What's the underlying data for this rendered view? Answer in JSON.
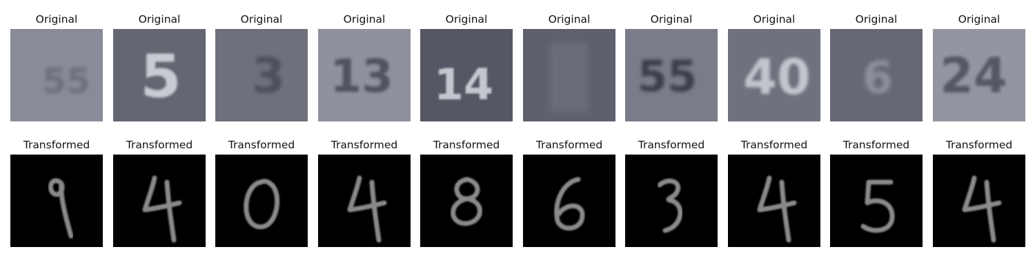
{
  "labels": {
    "original": "Original",
    "transformed": "Transformed"
  },
  "original_row": [
    {
      "glyph": "55",
      "bg": "#898c98",
      "fg": "#6d707c",
      "blur": 3.0,
      "size": 50,
      "dx": 14,
      "dy": 12
    },
    {
      "glyph": "5",
      "bg": "#646772",
      "fg": "#c8cbd2",
      "blur": 1.6,
      "size": 86,
      "dx": 2,
      "dy": 8
    },
    {
      "glyph": "3",
      "bg": "#6e717c",
      "fg": "#4d505c",
      "blur": 2.6,
      "size": 70,
      "dx": 10,
      "dy": 6
    },
    {
      "glyph": "13",
      "bg": "#8f929c",
      "fg": "#4f525e",
      "blur": 2.2,
      "size": 66,
      "dx": -4,
      "dy": 6
    },
    {
      "glyph": "14",
      "bg": "#555864",
      "fg": "#c4c7ce",
      "blur": 1.2,
      "size": 62,
      "dx": -4,
      "dy": 18
    },
    {
      "glyph": "",
      "bg": "#5e616d",
      "fg": "#5e616d",
      "blur": 4.0,
      "size": 60,
      "dx": 0,
      "dy": 0
    },
    {
      "glyph": "55",
      "bg": "#7a7d89",
      "fg": "#3a3d49",
      "blur": 2.6,
      "size": 62,
      "dx": -6,
      "dy": 6
    },
    {
      "glyph": "40",
      "bg": "#6f727e",
      "fg": "#c2c5cc",
      "blur": 2.0,
      "size": 70,
      "dx": 4,
      "dy": 8
    },
    {
      "glyph": "6",
      "bg": "#666975",
      "fg": "#8d909a",
      "blur": 3.0,
      "size": 64,
      "dx": 2,
      "dy": 8
    },
    {
      "glyph": "24",
      "bg": "#9396a0",
      "fg": "#555864",
      "blur": 2.0,
      "size": 70,
      "dx": -8,
      "dy": 6
    }
  ],
  "transformed_row": [
    {
      "digit": "9"
    },
    {
      "digit": "4"
    },
    {
      "digit": "0"
    },
    {
      "digit": "4"
    },
    {
      "digit": "8"
    },
    {
      "digit": "6"
    },
    {
      "digit": "3"
    },
    {
      "digit": "4"
    },
    {
      "digit": "5"
    },
    {
      "digit": "4"
    }
  ],
  "colors": {
    "transformed_bg": "#000000",
    "transformed_stroke": "#8a8a8a"
  }
}
